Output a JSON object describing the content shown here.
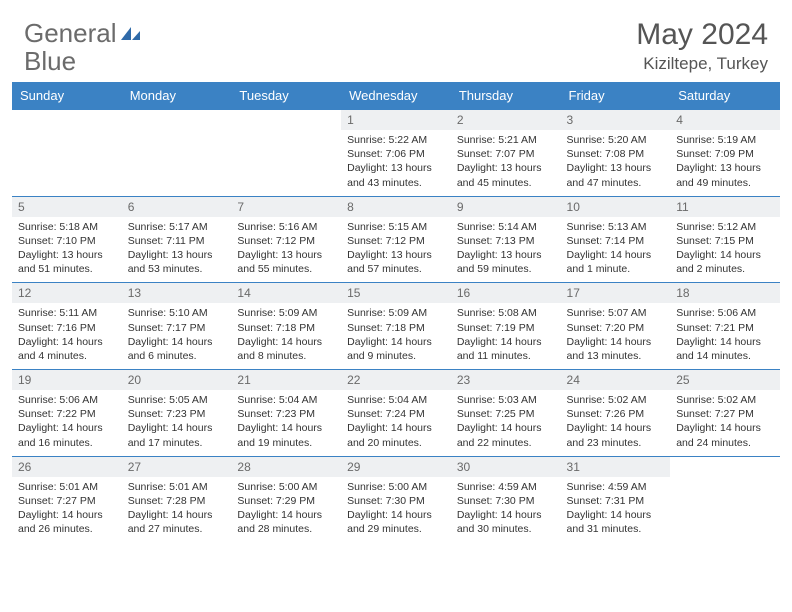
{
  "brand": {
    "text1": "General",
    "text2": "Blue"
  },
  "title": "May 2024",
  "location": "Kiziltepe, Turkey",
  "colors": {
    "header_bg": "#3b82c4",
    "header_text": "#ffffff",
    "daynum_bg": "#eef0f2",
    "daynum_text": "#6a6a6a",
    "body_text": "#333333",
    "rule": "#3b82c4",
    "title_text": "#555555",
    "logo_gray": "#6b6b6b",
    "logo_blue": "#3b82c4"
  },
  "fonts": {
    "title_size": 30,
    "location_size": 17,
    "header_size": 13,
    "daynum_size": 12,
    "body_size": 10.5
  },
  "dayNames": [
    "Sunday",
    "Monday",
    "Tuesday",
    "Wednesday",
    "Thursday",
    "Friday",
    "Saturday"
  ],
  "weeks": [
    [
      {
        "n": "",
        "sr": "",
        "ss": "",
        "dl": ""
      },
      {
        "n": "",
        "sr": "",
        "ss": "",
        "dl": ""
      },
      {
        "n": "",
        "sr": "",
        "ss": "",
        "dl": ""
      },
      {
        "n": "1",
        "sr": "Sunrise: 5:22 AM",
        "ss": "Sunset: 7:06 PM",
        "dl": "Daylight: 13 hours and 43 minutes."
      },
      {
        "n": "2",
        "sr": "Sunrise: 5:21 AM",
        "ss": "Sunset: 7:07 PM",
        "dl": "Daylight: 13 hours and 45 minutes."
      },
      {
        "n": "3",
        "sr": "Sunrise: 5:20 AM",
        "ss": "Sunset: 7:08 PM",
        "dl": "Daylight: 13 hours and 47 minutes."
      },
      {
        "n": "4",
        "sr": "Sunrise: 5:19 AM",
        "ss": "Sunset: 7:09 PM",
        "dl": "Daylight: 13 hours and 49 minutes."
      }
    ],
    [
      {
        "n": "5",
        "sr": "Sunrise: 5:18 AM",
        "ss": "Sunset: 7:10 PM",
        "dl": "Daylight: 13 hours and 51 minutes."
      },
      {
        "n": "6",
        "sr": "Sunrise: 5:17 AM",
        "ss": "Sunset: 7:11 PM",
        "dl": "Daylight: 13 hours and 53 minutes."
      },
      {
        "n": "7",
        "sr": "Sunrise: 5:16 AM",
        "ss": "Sunset: 7:12 PM",
        "dl": "Daylight: 13 hours and 55 minutes."
      },
      {
        "n": "8",
        "sr": "Sunrise: 5:15 AM",
        "ss": "Sunset: 7:12 PM",
        "dl": "Daylight: 13 hours and 57 minutes."
      },
      {
        "n": "9",
        "sr": "Sunrise: 5:14 AM",
        "ss": "Sunset: 7:13 PM",
        "dl": "Daylight: 13 hours and 59 minutes."
      },
      {
        "n": "10",
        "sr": "Sunrise: 5:13 AM",
        "ss": "Sunset: 7:14 PM",
        "dl": "Daylight: 14 hours and 1 minute."
      },
      {
        "n": "11",
        "sr": "Sunrise: 5:12 AM",
        "ss": "Sunset: 7:15 PM",
        "dl": "Daylight: 14 hours and 2 minutes."
      }
    ],
    [
      {
        "n": "12",
        "sr": "Sunrise: 5:11 AM",
        "ss": "Sunset: 7:16 PM",
        "dl": "Daylight: 14 hours and 4 minutes."
      },
      {
        "n": "13",
        "sr": "Sunrise: 5:10 AM",
        "ss": "Sunset: 7:17 PM",
        "dl": "Daylight: 14 hours and 6 minutes."
      },
      {
        "n": "14",
        "sr": "Sunrise: 5:09 AM",
        "ss": "Sunset: 7:18 PM",
        "dl": "Daylight: 14 hours and 8 minutes."
      },
      {
        "n": "15",
        "sr": "Sunrise: 5:09 AM",
        "ss": "Sunset: 7:18 PM",
        "dl": "Daylight: 14 hours and 9 minutes."
      },
      {
        "n": "16",
        "sr": "Sunrise: 5:08 AM",
        "ss": "Sunset: 7:19 PM",
        "dl": "Daylight: 14 hours and 11 minutes."
      },
      {
        "n": "17",
        "sr": "Sunrise: 5:07 AM",
        "ss": "Sunset: 7:20 PM",
        "dl": "Daylight: 14 hours and 13 minutes."
      },
      {
        "n": "18",
        "sr": "Sunrise: 5:06 AM",
        "ss": "Sunset: 7:21 PM",
        "dl": "Daylight: 14 hours and 14 minutes."
      }
    ],
    [
      {
        "n": "19",
        "sr": "Sunrise: 5:06 AM",
        "ss": "Sunset: 7:22 PM",
        "dl": "Daylight: 14 hours and 16 minutes."
      },
      {
        "n": "20",
        "sr": "Sunrise: 5:05 AM",
        "ss": "Sunset: 7:23 PM",
        "dl": "Daylight: 14 hours and 17 minutes."
      },
      {
        "n": "21",
        "sr": "Sunrise: 5:04 AM",
        "ss": "Sunset: 7:23 PM",
        "dl": "Daylight: 14 hours and 19 minutes."
      },
      {
        "n": "22",
        "sr": "Sunrise: 5:04 AM",
        "ss": "Sunset: 7:24 PM",
        "dl": "Daylight: 14 hours and 20 minutes."
      },
      {
        "n": "23",
        "sr": "Sunrise: 5:03 AM",
        "ss": "Sunset: 7:25 PM",
        "dl": "Daylight: 14 hours and 22 minutes."
      },
      {
        "n": "24",
        "sr": "Sunrise: 5:02 AM",
        "ss": "Sunset: 7:26 PM",
        "dl": "Daylight: 14 hours and 23 minutes."
      },
      {
        "n": "25",
        "sr": "Sunrise: 5:02 AM",
        "ss": "Sunset: 7:27 PM",
        "dl": "Daylight: 14 hours and 24 minutes."
      }
    ],
    [
      {
        "n": "26",
        "sr": "Sunrise: 5:01 AM",
        "ss": "Sunset: 7:27 PM",
        "dl": "Daylight: 14 hours and 26 minutes."
      },
      {
        "n": "27",
        "sr": "Sunrise: 5:01 AM",
        "ss": "Sunset: 7:28 PM",
        "dl": "Daylight: 14 hours and 27 minutes."
      },
      {
        "n": "28",
        "sr": "Sunrise: 5:00 AM",
        "ss": "Sunset: 7:29 PM",
        "dl": "Daylight: 14 hours and 28 minutes."
      },
      {
        "n": "29",
        "sr": "Sunrise: 5:00 AM",
        "ss": "Sunset: 7:30 PM",
        "dl": "Daylight: 14 hours and 29 minutes."
      },
      {
        "n": "30",
        "sr": "Sunrise: 4:59 AM",
        "ss": "Sunset: 7:30 PM",
        "dl": "Daylight: 14 hours and 30 minutes."
      },
      {
        "n": "31",
        "sr": "Sunrise: 4:59 AM",
        "ss": "Sunset: 7:31 PM",
        "dl": "Daylight: 14 hours and 31 minutes."
      },
      {
        "n": "",
        "sr": "",
        "ss": "",
        "dl": ""
      }
    ]
  ]
}
